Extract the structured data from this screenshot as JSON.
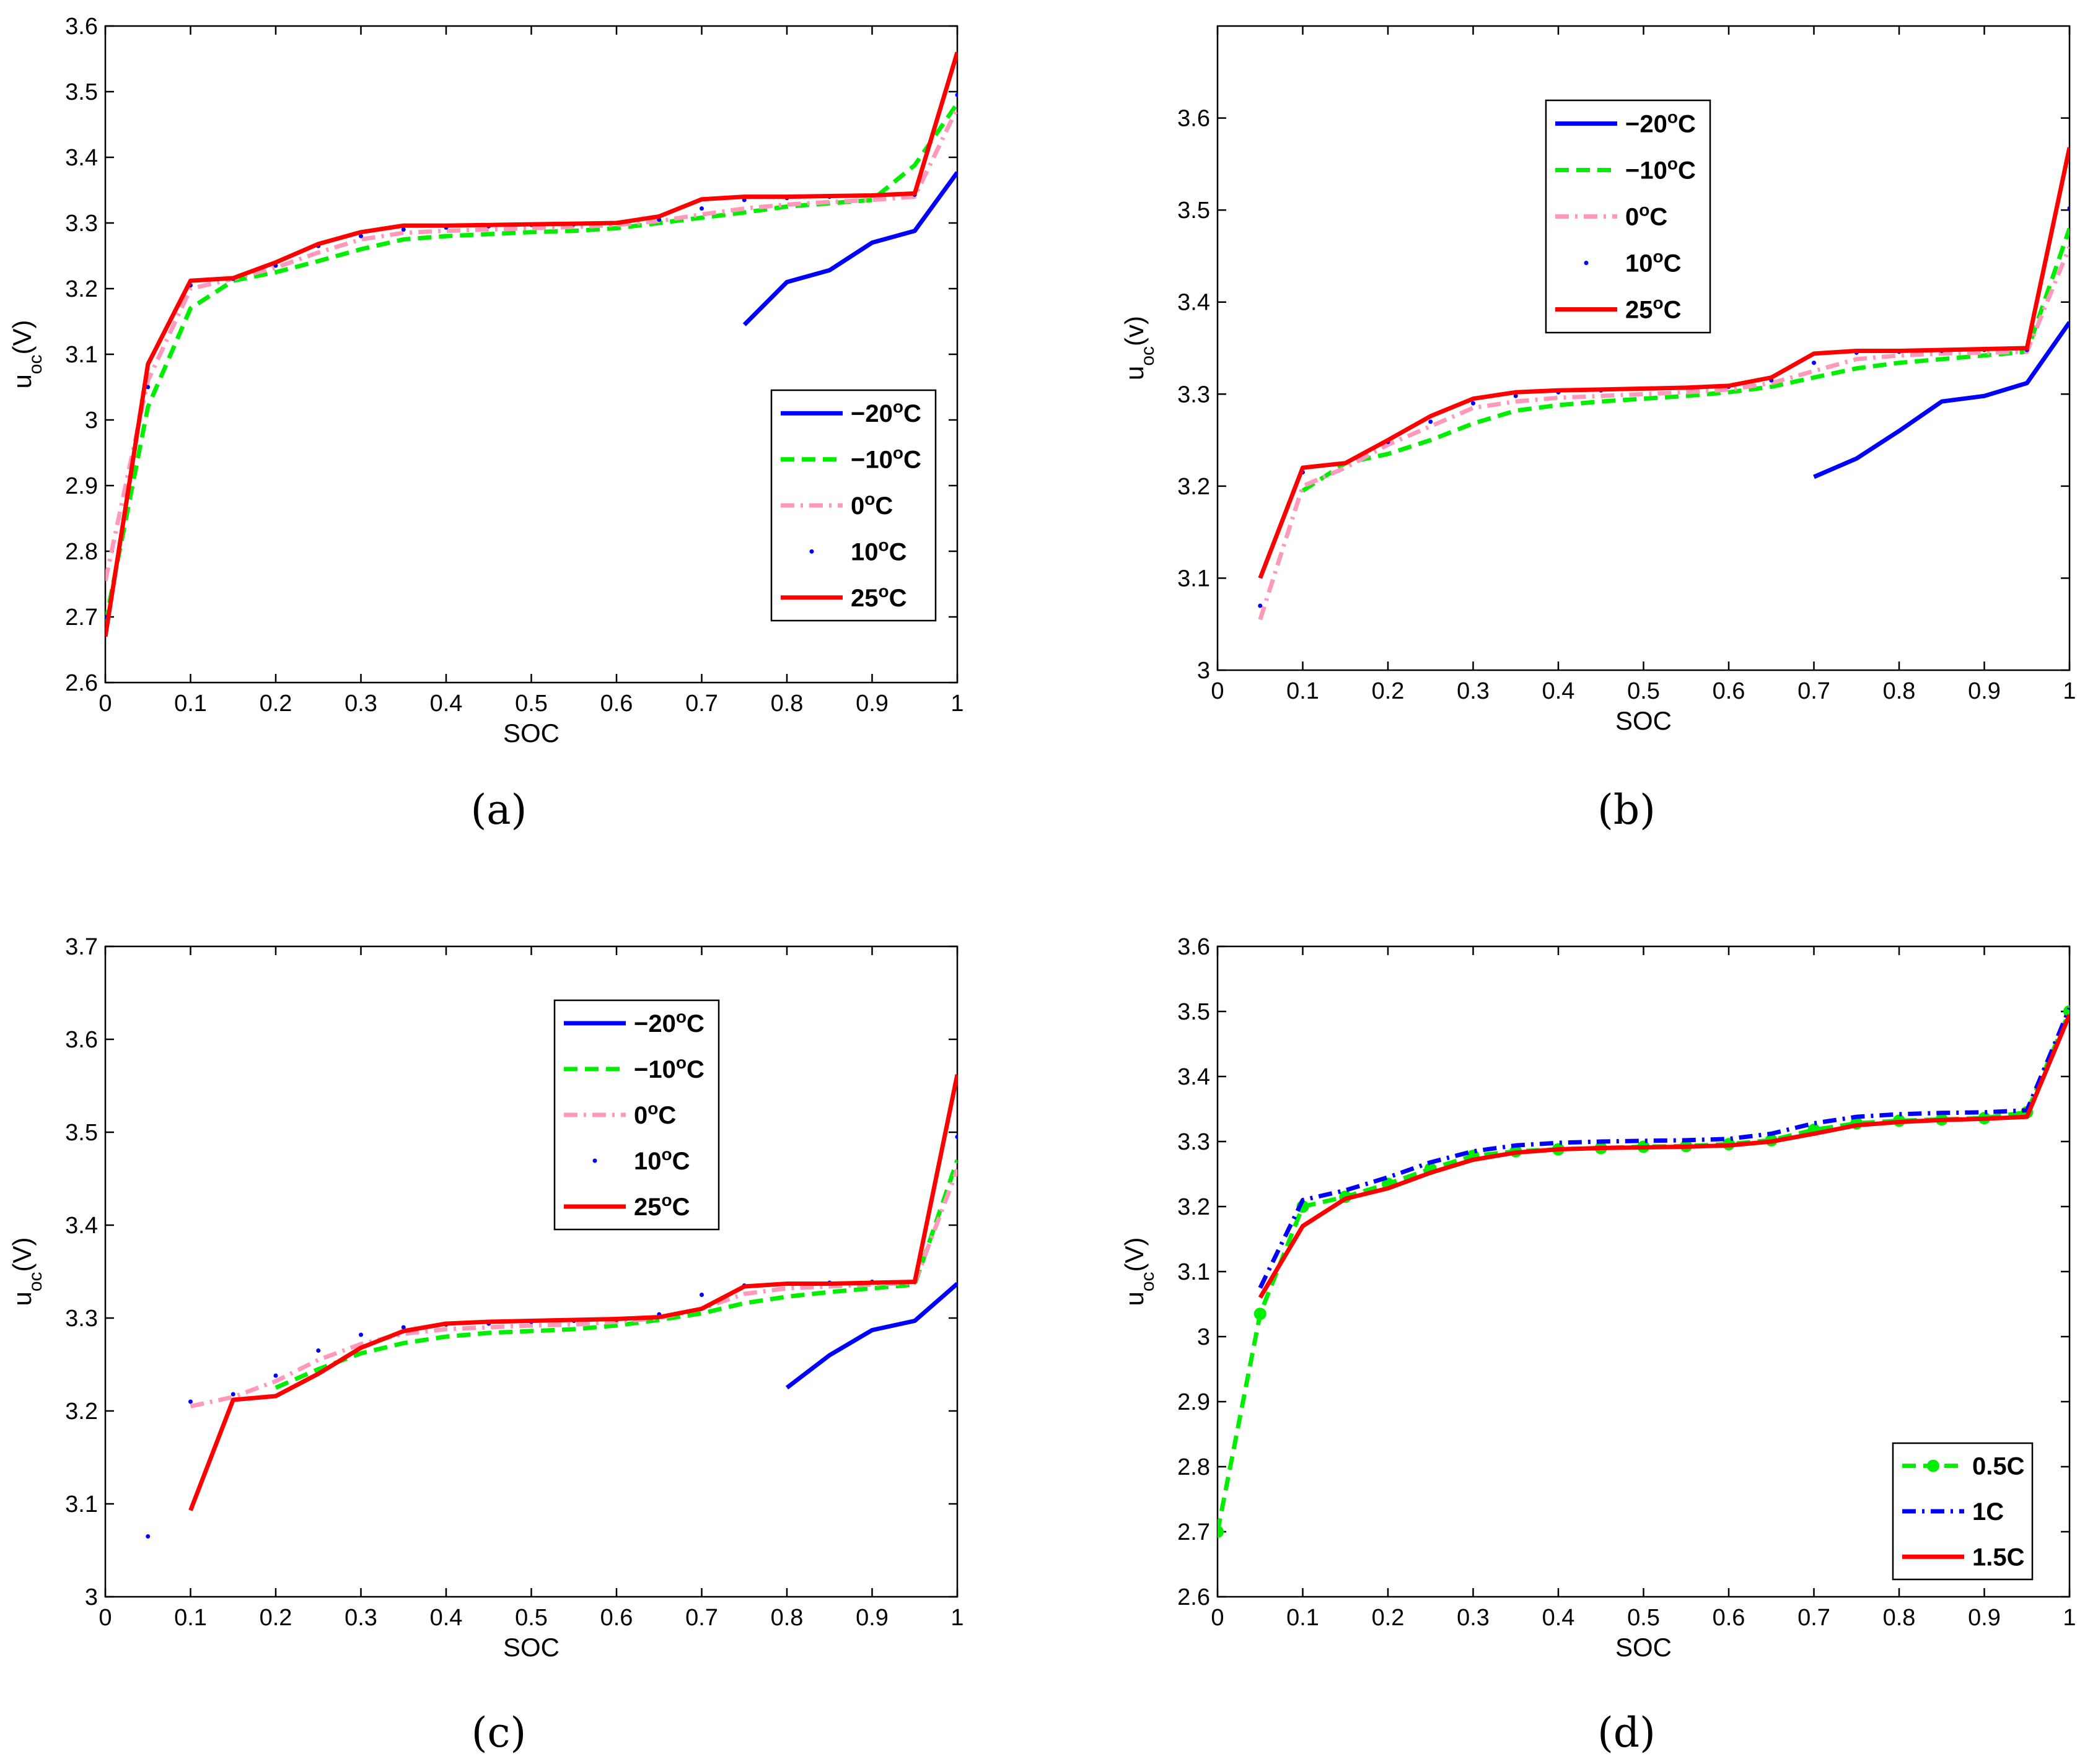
{
  "style": {
    "colors": {
      "-20": "#0000ff",
      "-10": "#00ee00",
      "0": "#ff99bb",
      "10": "#0000ff",
      "25": "#ff0000",
      "0.5C": "#00ee00",
      "1C": "#0000ff",
      "1.5C": "#ff0000"
    }
  },
  "chart_data": [
    {
      "id": "a",
      "caption": "(a)",
      "type": "line",
      "xlabel": "SOC",
      "ylabel": {
        "main": "u",
        "sub": "oc",
        "rest": "(V)"
      },
      "xlim": [
        0,
        1
      ],
      "ylim": [
        2.6,
        3.6
      ],
      "xticks": [
        "0",
        "0.1",
        "0.2",
        "0.3",
        "0.4",
        "0.5",
        "0.6",
        "0.7",
        "0.8",
        "0.9",
        "1"
      ],
      "yticks": [
        "2.6",
        "2.7",
        "2.8",
        "2.9",
        "3",
        "3.1",
        "3.2",
        "3.3",
        "3.4",
        "3.5",
        "3.6"
      ],
      "legend_position": "center-right",
      "series": [
        {
          "name": "−20",
          "unit": "C",
          "style": "solid",
          "color_key": "-20",
          "x": [
            0.75,
            0.8,
            0.85,
            0.9,
            0.95,
            1.0
          ],
          "y": [
            3.145,
            3.21,
            3.228,
            3.27,
            3.288,
            3.377
          ]
        },
        {
          "name": "−10",
          "unit": "C",
          "style": "dashed",
          "color_key": "-10",
          "x": [
            0,
            0.05,
            0.1,
            0.15,
            0.2,
            0.25,
            0.3,
            0.35,
            0.4,
            0.45,
            0.5,
            0.55,
            0.6,
            0.65,
            0.7,
            0.75,
            0.8,
            0.85,
            0.9,
            0.95,
            1.0
          ],
          "y": [
            2.69,
            3.02,
            3.17,
            3.212,
            3.225,
            3.242,
            3.26,
            3.275,
            3.28,
            3.283,
            3.286,
            3.288,
            3.292,
            3.3,
            3.308,
            3.316,
            3.325,
            3.33,
            3.335,
            3.388,
            3.482
          ]
        },
        {
          "name": "0",
          "unit": "C",
          "style": "dashdot",
          "color_key": "0",
          "x": [
            0,
            0.05,
            0.1,
            0.15,
            0.2,
            0.25,
            0.3,
            0.35,
            0.4,
            0.45,
            0.5,
            0.55,
            0.6,
            0.65,
            0.7,
            0.75,
            0.8,
            0.85,
            0.9,
            0.95,
            1.0
          ],
          "y": [
            2.755,
            3.06,
            3.2,
            3.215,
            3.232,
            3.255,
            3.275,
            3.285,
            3.288,
            3.29,
            3.292,
            3.294,
            3.297,
            3.303,
            3.313,
            3.322,
            3.328,
            3.332,
            3.335,
            3.34,
            3.475
          ]
        },
        {
          "name": "10",
          "unit": "C",
          "style": "dots",
          "color_key": "10",
          "x": [
            0,
            0.05,
            0.1,
            0.15,
            0.2,
            0.25,
            0.3,
            0.35,
            0.4,
            0.45,
            0.5,
            0.55,
            0.6,
            0.65,
            0.7,
            0.75,
            0.8,
            0.85,
            0.9,
            0.95,
            1.0
          ],
          "y": [
            2.7,
            3.05,
            3.205,
            3.215,
            3.235,
            3.265,
            3.28,
            3.29,
            3.293,
            3.295,
            3.297,
            3.298,
            3.3,
            3.305,
            3.322,
            3.335,
            3.338,
            3.34,
            3.342,
            3.343,
            3.495
          ]
        },
        {
          "name": "25",
          "unit": "C",
          "style": "solid",
          "color_key": "25",
          "x": [
            0,
            0.05,
            0.1,
            0.15,
            0.2,
            0.25,
            0.3,
            0.35,
            0.4,
            0.45,
            0.5,
            0.55,
            0.6,
            0.65,
            0.7,
            0.75,
            0.8,
            0.85,
            0.9,
            0.95,
            1.0
          ],
          "y": [
            2.67,
            3.085,
            3.212,
            3.216,
            3.24,
            3.268,
            3.286,
            3.296,
            3.296,
            3.297,
            3.298,
            3.299,
            3.3,
            3.31,
            3.336,
            3.34,
            3.34,
            3.341,
            3.342,
            3.345,
            3.56
          ]
        }
      ]
    },
    {
      "id": "b",
      "caption": "(b)",
      "type": "line",
      "xlabel": "SOC",
      "ylabel": {
        "main": "u",
        "sub": "oc",
        "rest": "(v)"
      },
      "xlim": [
        0,
        1
      ],
      "ylim": [
        3.0,
        3.7
      ],
      "xticks": [
        "0",
        "0.1",
        "0.2",
        "0.3",
        "0.4",
        "0.5",
        "0.6",
        "0.7",
        "0.8",
        "0.9",
        "1"
      ],
      "yticks": [
        "3",
        "3.1",
        "3.2",
        "3.3",
        "3.4",
        "3.5",
        "3.6"
      ],
      "legend_position": "top-left",
      "series": [
        {
          "name": "−20",
          "unit": "C",
          "style": "solid",
          "color_key": "-20",
          "x": [
            0.7,
            0.75,
            0.8,
            0.85,
            0.9,
            0.95,
            1.0
          ],
          "y": [
            3.21,
            3.23,
            3.26,
            3.292,
            3.298,
            3.312,
            3.378
          ]
        },
        {
          "name": "−10",
          "unit": "C",
          "style": "dashed",
          "color_key": "-10",
          "x": [
            0.1,
            0.15,
            0.2,
            0.25,
            0.3,
            0.35,
            0.4,
            0.45,
            0.5,
            0.55,
            0.6,
            0.65,
            0.7,
            0.75,
            0.8,
            0.85,
            0.9,
            0.95,
            1.0
          ],
          "y": [
            3.195,
            3.225,
            3.235,
            3.25,
            3.268,
            3.282,
            3.288,
            3.292,
            3.295,
            3.298,
            3.302,
            3.308,
            3.318,
            3.328,
            3.334,
            3.338,
            3.342,
            3.346,
            3.48
          ]
        },
        {
          "name": "0",
          "unit": "C",
          "style": "dashdot",
          "color_key": "0",
          "x": [
            0.05,
            0.1,
            0.15,
            0.2,
            0.25,
            0.3,
            0.35,
            0.4,
            0.45,
            0.5,
            0.55,
            0.6,
            0.65,
            0.7,
            0.75,
            0.8,
            0.85,
            0.9,
            0.95,
            1.0
          ],
          "y": [
            3.055,
            3.2,
            3.22,
            3.245,
            3.265,
            3.285,
            3.292,
            3.296,
            3.298,
            3.3,
            3.302,
            3.305,
            3.312,
            3.325,
            3.338,
            3.342,
            3.344,
            3.345,
            3.346,
            3.46
          ]
        },
        {
          "name": "10",
          "unit": "C",
          "style": "dots",
          "color_key": "10",
          "x": [
            0.05,
            0.1,
            0.15,
            0.2,
            0.25,
            0.3,
            0.35,
            0.4,
            0.45,
            0.5,
            0.55,
            0.6,
            0.65,
            0.7,
            0.75,
            0.8,
            0.85,
            0.9,
            0.95,
            1.0
          ],
          "y": [
            3.07,
            3.215,
            3.225,
            3.248,
            3.27,
            3.29,
            3.298,
            3.302,
            3.304,
            3.306,
            3.307,
            3.308,
            3.315,
            3.334,
            3.345,
            3.346,
            3.347,
            3.348,
            3.348,
            3.502
          ]
        },
        {
          "name": "25",
          "unit": "C",
          "style": "solid",
          "color_key": "25",
          "x": [
            0.05,
            0.1,
            0.15,
            0.2,
            0.25,
            0.3,
            0.35,
            0.4,
            0.45,
            0.5,
            0.55,
            0.6,
            0.65,
            0.7,
            0.75,
            0.8,
            0.85,
            0.9,
            0.95,
            1.0
          ],
          "y": [
            3.1,
            3.22,
            3.225,
            3.25,
            3.276,
            3.295,
            3.302,
            3.304,
            3.305,
            3.306,
            3.307,
            3.309,
            3.318,
            3.344,
            3.347,
            3.347,
            3.348,
            3.349,
            3.35,
            3.568
          ]
        }
      ]
    },
    {
      "id": "c",
      "caption": "(c)",
      "type": "line",
      "xlabel": "SOC",
      "ylabel": {
        "main": "u",
        "sub": "oc",
        "rest": "(V)"
      },
      "xlim": [
        0,
        1
      ],
      "ylim": [
        3.0,
        3.7
      ],
      "xticks": [
        "0",
        "0.1",
        "0.2",
        "0.3",
        "0.4",
        "0.5",
        "0.6",
        "0.7",
        "0.8",
        "0.9",
        "1"
      ],
      "yticks": [
        "3",
        "3.1",
        "3.2",
        "3.3",
        "3.4",
        "3.5",
        "3.6",
        "3.7"
      ],
      "legend_position": "top-center",
      "series": [
        {
          "name": "−20",
          "unit": "C",
          "style": "solid",
          "color_key": "-20",
          "x": [
            0.8,
            0.85,
            0.9,
            0.95,
            1.0
          ],
          "y": [
            3.225,
            3.26,
            3.287,
            3.297,
            3.337
          ]
        },
        {
          "name": "−10",
          "unit": "C",
          "style": "dashed",
          "color_key": "-10",
          "x": [
            0.2,
            0.25,
            0.3,
            0.35,
            0.4,
            0.45,
            0.5,
            0.55,
            0.6,
            0.65,
            0.7,
            0.75,
            0.8,
            0.85,
            0.9,
            0.95,
            1.0
          ],
          "y": [
            3.225,
            3.245,
            3.262,
            3.273,
            3.28,
            3.284,
            3.286,
            3.288,
            3.292,
            3.298,
            3.305,
            3.316,
            3.323,
            3.328,
            3.332,
            3.336,
            3.47
          ]
        },
        {
          "name": "0",
          "unit": "C",
          "style": "dashdot",
          "color_key": "0",
          "x": [
            0.1,
            0.15,
            0.2,
            0.25,
            0.3,
            0.35,
            0.4,
            0.45,
            0.5,
            0.55,
            0.6,
            0.65,
            0.7,
            0.75,
            0.8,
            0.85,
            0.9,
            0.95,
            1.0
          ],
          "y": [
            3.205,
            3.215,
            3.232,
            3.255,
            3.272,
            3.283,
            3.288,
            3.29,
            3.292,
            3.293,
            3.296,
            3.3,
            3.31,
            3.326,
            3.332,
            3.334,
            3.336,
            3.338,
            3.46
          ]
        },
        {
          "name": "10",
          "unit": "C",
          "style": "dots",
          "color_key": "10",
          "x": [
            0.05,
            0.1,
            0.15,
            0.2,
            0.25,
            0.3,
            0.35,
            0.4,
            0.45,
            0.5,
            0.55,
            0.6,
            0.65,
            0.7,
            0.75,
            0.8,
            0.85,
            0.9,
            0.95,
            1.0
          ],
          "y": [
            3.065,
            3.21,
            3.218,
            3.238,
            3.265,
            3.282,
            3.29,
            3.293,
            3.294,
            3.296,
            3.297,
            3.298,
            3.304,
            3.325,
            3.335,
            3.337,
            3.338,
            3.339,
            3.34,
            3.495
          ]
        },
        {
          "name": "25",
          "unit": "C",
          "style": "solid",
          "color_key": "25",
          "x": [
            0.1,
            0.15,
            0.2,
            0.25,
            0.3,
            0.35,
            0.4,
            0.45,
            0.5,
            0.55,
            0.6,
            0.65,
            0.7,
            0.75,
            0.8,
            0.85,
            0.9,
            0.95,
            1.0
          ],
          "y": [
            3.093,
            3.212,
            3.216,
            3.24,
            3.268,
            3.286,
            3.294,
            3.296,
            3.297,
            3.298,
            3.299,
            3.301,
            3.31,
            3.334,
            3.337,
            3.337,
            3.338,
            3.339,
            3.562
          ]
        }
      ]
    },
    {
      "id": "d",
      "caption": "(d)",
      "type": "line",
      "xlabel": "SOC",
      "ylabel": {
        "main": "u",
        "sub": "oc",
        "rest": "(V)"
      },
      "xlim": [
        0,
        1
      ],
      "ylim": [
        2.6,
        3.6
      ],
      "xticks": [
        "0",
        "0.1",
        "0.2",
        "0.3",
        "0.4",
        "0.5",
        "0.6",
        "0.7",
        "0.8",
        "0.9",
        "1"
      ],
      "yticks": [
        "2.6",
        "2.7",
        "2.8",
        "2.9",
        "3",
        "3.1",
        "3.2",
        "3.3",
        "3.4",
        "3.5",
        "3.6"
      ],
      "legend_position": "bottom-right",
      "series": [
        {
          "name": "0.5C",
          "unit": "",
          "style": "dashed-markers",
          "color_key": "0.5C",
          "x": [
            0,
            0.05,
            0.1,
            0.15,
            0.2,
            0.25,
            0.3,
            0.35,
            0.4,
            0.45,
            0.5,
            0.55,
            0.6,
            0.65,
            0.7,
            0.75,
            0.8,
            0.85,
            0.9,
            0.95,
            1.0
          ],
          "y": [
            2.7,
            3.035,
            3.2,
            3.215,
            3.235,
            3.258,
            3.278,
            3.285,
            3.288,
            3.29,
            3.292,
            3.293,
            3.296,
            3.302,
            3.318,
            3.328,
            3.332,
            3.334,
            3.336,
            3.345,
            3.5
          ]
        },
        {
          "name": "1C",
          "unit": "",
          "style": "dashdot",
          "color_key": "1C",
          "x": [
            0.05,
            0.1,
            0.15,
            0.2,
            0.25,
            0.3,
            0.35,
            0.4,
            0.45,
            0.5,
            0.55,
            0.6,
            0.65,
            0.7,
            0.75,
            0.8,
            0.85,
            0.9,
            0.95,
            1.0
          ],
          "y": [
            3.075,
            3.21,
            3.225,
            3.245,
            3.268,
            3.285,
            3.294,
            3.298,
            3.3,
            3.301,
            3.302,
            3.304,
            3.312,
            3.328,
            3.338,
            3.342,
            3.344,
            3.345,
            3.348,
            3.505
          ]
        },
        {
          "name": "1.5C",
          "unit": "",
          "style": "solid",
          "color_key": "1.5C",
          "x": [
            0.05,
            0.1,
            0.15,
            0.2,
            0.25,
            0.3,
            0.35,
            0.4,
            0.45,
            0.5,
            0.55,
            0.6,
            0.65,
            0.7,
            0.75,
            0.8,
            0.85,
            0.9,
            0.95,
            1.0
          ],
          "y": [
            3.06,
            3.17,
            3.212,
            3.228,
            3.252,
            3.272,
            3.283,
            3.288,
            3.29,
            3.291,
            3.292,
            3.294,
            3.3,
            3.312,
            3.325,
            3.33,
            3.333,
            3.335,
            3.338,
            3.495
          ]
        }
      ]
    }
  ]
}
